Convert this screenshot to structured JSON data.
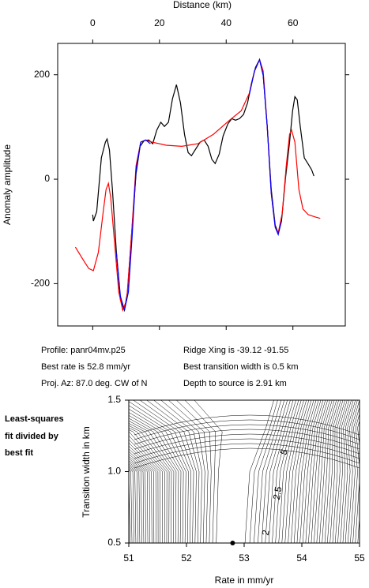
{
  "chart_data": [
    {
      "type": "line",
      "xlabel": "Distance (km)",
      "ylabel": "Anomaly amplitude",
      "xlim": [
        -10.5,
        75.7
      ],
      "ylim": [
        -281,
        260
      ],
      "xticks": [
        0,
        20,
        40,
        60
      ],
      "yticks": [
        -200,
        0,
        200
      ],
      "series": [
        {
          "color": "#000000",
          "x": [
            0,
            0.2,
            1.2,
            2.6,
            3.8,
            4.3,
            5,
            5.9,
            7.1,
            8.3,
            9.5,
            10.4,
            11.6,
            13,
            14.2,
            15.4,
            16.8,
            18,
            19.2,
            20.4,
            21.5,
            22.7,
            23.9,
            25.1,
            26.3,
            27.5,
            28.6,
            29.6,
            31,
            32.2,
            33.4,
            34.6,
            35.7,
            36.7,
            37.9,
            39.1,
            40.5,
            41.7,
            42.8,
            44,
            45.2,
            46.4,
            47.6,
            48.8,
            50,
            51.1,
            52.3,
            53.5,
            54.7,
            55.6,
            56.6,
            57.8,
            59,
            59.9,
            60.6,
            61.3,
            62.2,
            63.4,
            64.6,
            65.6,
            66.3
          ],
          "values": [
            -68,
            -80,
            -62,
            41,
            71,
            77,
            56,
            -20,
            -140,
            -231,
            -251,
            -216,
            -110,
            11,
            63,
            74,
            75,
            68,
            94,
            109,
            101,
            109,
            154,
            181,
            146,
            86,
            51,
            45,
            59,
            71,
            75,
            63,
            38,
            30,
            48,
            83,
            106,
            116,
            113,
            116,
            124,
            146,
            184,
            214,
            229,
            199,
            101,
            -20,
            -88,
            -103,
            -80,
            3,
            71,
            131,
            158,
            152,
            101,
            41,
            29,
            18,
            6
          ]
        },
        {
          "color": "#ff0000",
          "x": [
            -5.2,
            -2.8,
            -1.2,
            0.2,
            1.7,
            3.1,
            4,
            4.7,
            5.4,
            6.6,
            7.8,
            9,
            10.2,
            11.6,
            13,
            14.4,
            15.9,
            17.8,
            22,
            26.7,
            31.5,
            36.2,
            41,
            44.5,
            46.9,
            48.5,
            50,
            51.1,
            52.3,
            53.5,
            54.7,
            55.6,
            56.8,
            58,
            59,
            59.6,
            60.6,
            61.8,
            63,
            64.6,
            66.5,
            68.2
          ],
          "values": [
            -130,
            -155,
            -171,
            -175,
            -140,
            -65,
            -20,
            -8,
            -35,
            -125,
            -216,
            -251,
            -231,
            -110,
            26,
            71,
            75,
            71,
            65,
            63,
            68,
            86,
            113,
            131,
            164,
            207,
            229,
            207,
            101,
            -27,
            -92,
            -103,
            -65,
            26,
            86,
            94,
            71,
            -20,
            -57,
            -68,
            -72,
            -75
          ]
        },
        {
          "color": "#0000ff",
          "x": [
            7.1,
            8.3,
            9.5,
            10.7,
            11.8,
            13,
            14.4,
            15.9,
            17.3,
            null,
            46.9,
            48.5,
            50,
            51.1,
            52.3,
            53.5,
            54.7,
            55.6,
            56.6
          ],
          "values": [
            -140,
            -224,
            -251,
            -216,
            -110,
            18,
            71,
            75,
            68,
            null,
            161,
            207,
            229,
            199,
            101,
            -27,
            -92,
            -106,
            -80
          ]
        }
      ]
    },
    {
      "type": "contour",
      "xlabel": "Rate in mm/yr",
      "ylabel": "Transition width in km",
      "xlim": [
        51,
        55
      ],
      "ylim": [
        0.5,
        1.5
      ],
      "xticks": [
        51,
        52,
        53,
        54,
        55
      ],
      "yticks": [
        0.5,
        {
          "value": 1,
          "label": "1.0"
        },
        1.5
      ],
      "contour_labels": [
        "5",
        "2.5",
        "2"
      ],
      "best_point": {
        "x": 52.8,
        "y": 0.5
      },
      "color": "#000000"
    }
  ],
  "info": {
    "profile": "Profile: panr04mv.p25",
    "rate": "Best rate is 52.8 mm/yr",
    "azimuth": "Proj. Az: 87.0 deg. CW of N",
    "ridge": "Ridge Xing is -39.12 -91.55",
    "width": "Best transition width is 0.5 km",
    "depth": "Depth to source is   2.91 km"
  },
  "side_label": [
    "Least-squares",
    "fit divided by",
    "best fit"
  ]
}
